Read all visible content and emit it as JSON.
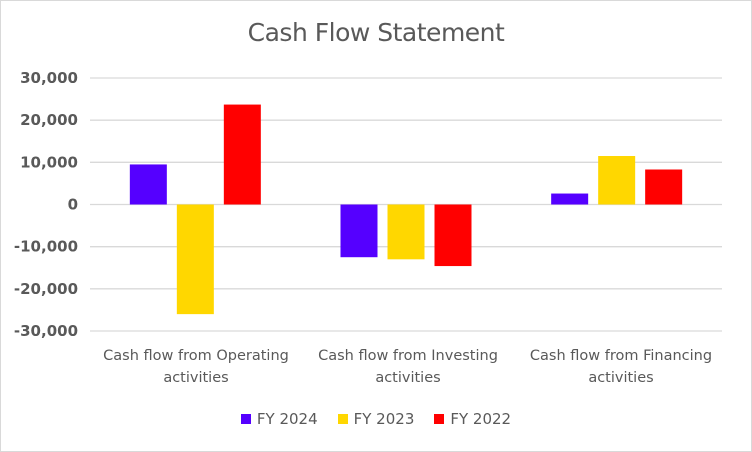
{
  "chart_data": {
    "type": "bar",
    "title": "Cash Flow Statement",
    "xlabel": "",
    "ylabel": "",
    "ylim": [
      -30000,
      30000
    ],
    "yticks": [
      30000,
      20000,
      10000,
      0,
      -10000,
      -20000,
      -30000
    ],
    "ytick_labels": [
      "30,000",
      "20,000",
      "10,000",
      "0",
      "-10,000",
      "-20,000",
      "-30,000"
    ],
    "grid": true,
    "legend_position": "bottom",
    "categories": [
      "Cash flow from Operating activities",
      "Cash flow from Investing activities",
      "Cash flow from Financing activities"
    ],
    "category_lines": [
      [
        "Cash flow from Operating",
        "activities"
      ],
      [
        "Cash flow from Investing",
        "activities"
      ],
      [
        "Cash flow from Financing",
        "activities"
      ]
    ],
    "series": [
      {
        "name": "FY 2024",
        "color": "#5500ff",
        "values": [
          9500,
          -12500,
          2600
        ]
      },
      {
        "name": "FY 2023",
        "color": "#ffd700",
        "values": [
          -26000,
          -13000,
          11500
        ]
      },
      {
        "name": "FY 2022",
        "color": "#ff0000",
        "values": [
          23700,
          -14600,
          8300
        ]
      }
    ]
  }
}
